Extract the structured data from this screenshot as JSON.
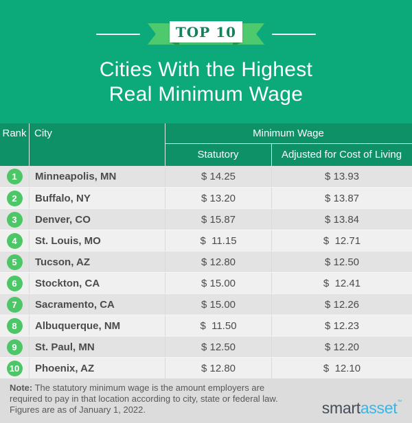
{
  "header": {
    "ribbon_label": "TOP 10",
    "title_line1": "Cities With the Highest",
    "title_line2": "Real Minimum Wage"
  },
  "table": {
    "columns": {
      "rank": "Rank",
      "city": "City",
      "group": "Minimum Wage",
      "statutory": "Statutory",
      "adjusted": "Adjusted for Cost of Living"
    },
    "rows": [
      {
        "rank": "1",
        "city": "Minneapolis, MN",
        "statutory": "$ 14.25",
        "adjusted": "$ 13.93"
      },
      {
        "rank": "2",
        "city": "Buffalo, NY",
        "statutory": "$ 13.20",
        "adjusted": "$ 13.87"
      },
      {
        "rank": "3",
        "city": "Denver, CO",
        "statutory": "$ 15.87",
        "adjusted": "$ 13.84"
      },
      {
        "rank": "4",
        "city": "St. Louis, MO",
        "statutory": "$  11.15",
        "adjusted": "$  12.71"
      },
      {
        "rank": "5",
        "city": "Tucson, AZ",
        "statutory": "$ 12.80",
        "adjusted": "$ 12.50"
      },
      {
        "rank": "6",
        "city": "Stockton, CA",
        "statutory": "$ 15.00",
        "adjusted": "$  12.41"
      },
      {
        "rank": "7",
        "city": "Sacramento, CA",
        "statutory": "$ 15.00",
        "adjusted": "$ 12.26"
      },
      {
        "rank": "8",
        "city": "Albuquerque, NM",
        "statutory": "$  11.50",
        "adjusted": "$ 12.23"
      },
      {
        "rank": "9",
        "city": "St. Paul, MN",
        "statutory": "$ 12.50",
        "adjusted": "$ 12.20"
      },
      {
        "rank": "10",
        "city": "Phoenix, AZ",
        "statutory": "$ 12.80",
        "adjusted": "$  12.10"
      }
    ]
  },
  "footer": {
    "note_label": "Note:",
    "note_lines": [
      "The statutory minimum wage is the amount employers are",
      "required to pay in that location according to city, state or federal law.",
      "Figures are as of January 1, 2022."
    ],
    "logo_part1": "smart",
    "logo_part2": "asset",
    "logo_tm": "™"
  },
  "colors": {
    "banner_green": "#0caa7b",
    "table_header_green": "#0e9166",
    "ribbon_green": "#4fc96e",
    "ribbon_fold_green": "#2e9c52",
    "ribbon_text_green": "#15815b",
    "rank_badge_green": "#4cc666",
    "row_dark": "#e3e3e3",
    "row_light": "#f0f0f0",
    "footer_gray": "#dcdcdc",
    "text_dark": "#4b4b4b",
    "logo_slate": "#454d56",
    "logo_blue": "#36b6e8"
  },
  "chart_data": {
    "type": "table",
    "title": "Cities With the Highest Real Minimum Wage",
    "subtitle": "TOP 10",
    "columns": [
      "Rank",
      "City",
      "Statutory Minimum Wage ($)",
      "Adjusted for Cost of Living ($)"
    ],
    "rows": [
      [
        1,
        "Minneapolis, MN",
        14.25,
        13.93
      ],
      [
        2,
        "Buffalo, NY",
        13.2,
        13.87
      ],
      [
        3,
        "Denver, CO",
        15.87,
        13.84
      ],
      [
        4,
        "St. Louis, MO",
        11.15,
        12.71
      ],
      [
        5,
        "Tucson, AZ",
        12.8,
        12.5
      ],
      [
        6,
        "Stockton, CA",
        15.0,
        12.41
      ],
      [
        7,
        "Sacramento, CA",
        15.0,
        12.26
      ],
      [
        8,
        "Albuquerque, NM",
        11.5,
        12.23
      ],
      [
        9,
        "St. Paul, MN",
        12.5,
        12.2
      ],
      [
        10,
        "Phoenix, AZ",
        12.8,
        12.1
      ]
    ],
    "note": "The statutory minimum wage is the amount employers are required to pay in that location according to city, state or federal law. Figures are as of January 1, 2022.",
    "source": "smartasset"
  }
}
